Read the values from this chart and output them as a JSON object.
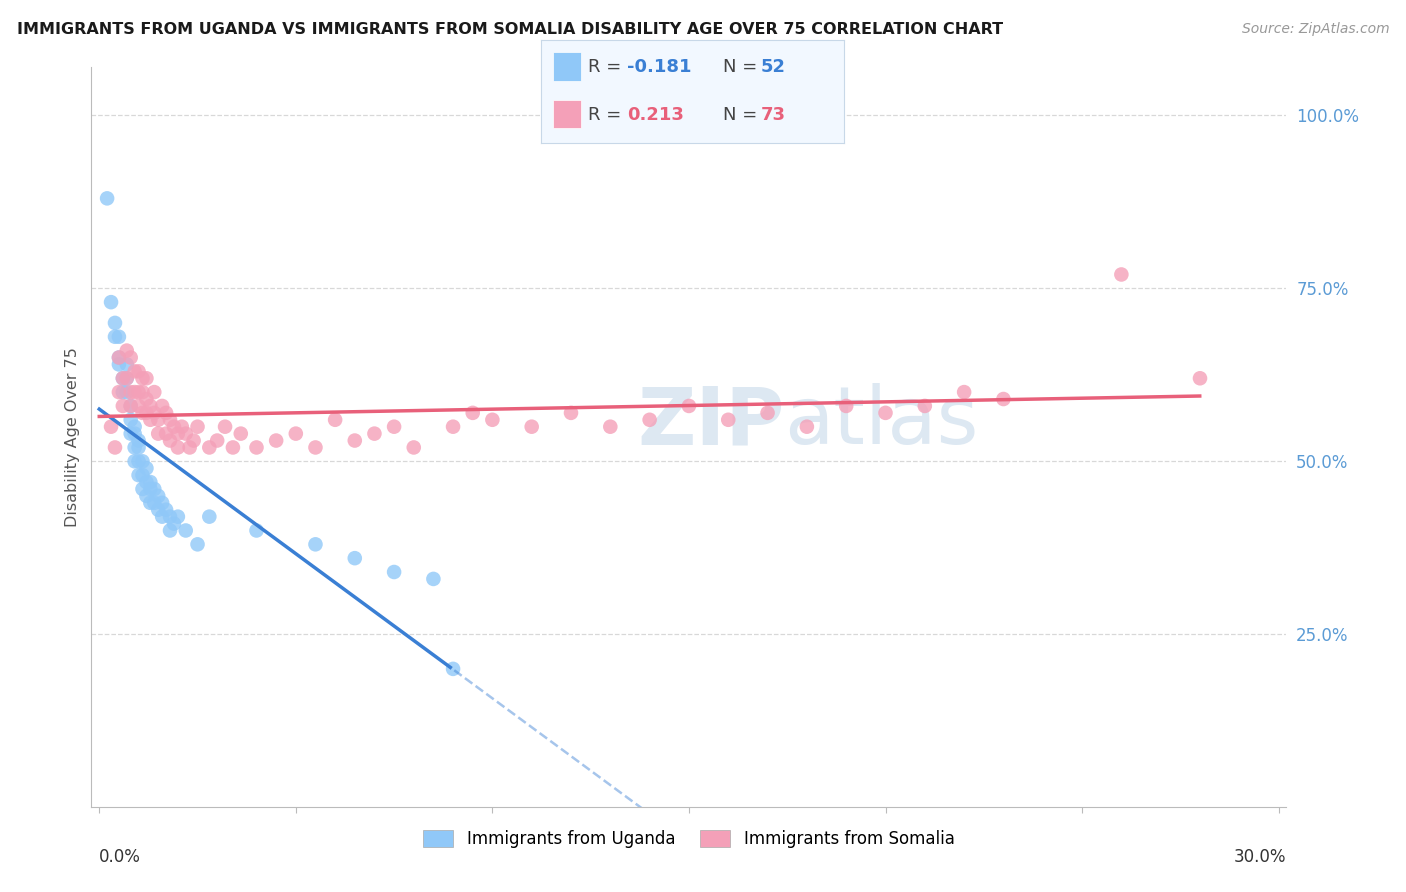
{
  "title": "IMMIGRANTS FROM UGANDA VS IMMIGRANTS FROM SOMALIA DISABILITY AGE OVER 75 CORRELATION CHART",
  "source": "Source: ZipAtlas.com",
  "ylabel": "Disability Age Over 75",
  "xlim": [
    0.0,
    0.3
  ],
  "ylim": [
    0.0,
    1.05
  ],
  "uganda_R": -0.181,
  "uganda_N": 52,
  "somalia_R": 0.213,
  "somalia_N": 73,
  "uganda_color": "#90c8f8",
  "somalia_color": "#f4a0b8",
  "uganda_line_color": "#3a7fd4",
  "somalia_line_color": "#e8607a",
  "watermark": "ZIPatlas",
  "grid_color": "#d8d8d8",
  "right_tick_color": "#5b9bd5",
  "uganda_x": [
    0.002,
    0.003,
    0.004,
    0.004,
    0.005,
    0.005,
    0.005,
    0.006,
    0.006,
    0.007,
    0.007,
    0.007,
    0.008,
    0.008,
    0.008,
    0.009,
    0.009,
    0.009,
    0.009,
    0.01,
    0.01,
    0.01,
    0.01,
    0.011,
    0.011,
    0.011,
    0.012,
    0.012,
    0.012,
    0.013,
    0.013,
    0.013,
    0.014,
    0.014,
    0.015,
    0.015,
    0.016,
    0.016,
    0.017,
    0.018,
    0.018,
    0.019,
    0.02,
    0.022,
    0.025,
    0.028,
    0.04,
    0.055,
    0.065,
    0.075,
    0.085,
    0.09
  ],
  "uganda_y": [
    0.88,
    0.73,
    0.7,
    0.68,
    0.68,
    0.65,
    0.64,
    0.62,
    0.6,
    0.64,
    0.62,
    0.6,
    0.58,
    0.56,
    0.54,
    0.55,
    0.54,
    0.52,
    0.5,
    0.53,
    0.52,
    0.5,
    0.48,
    0.5,
    0.48,
    0.46,
    0.49,
    0.47,
    0.45,
    0.47,
    0.46,
    0.44,
    0.46,
    0.44,
    0.45,
    0.43,
    0.44,
    0.42,
    0.43,
    0.42,
    0.4,
    0.41,
    0.42,
    0.4,
    0.38,
    0.42,
    0.4,
    0.38,
    0.36,
    0.34,
    0.33,
    0.2
  ],
  "somalia_x": [
    0.003,
    0.004,
    0.005,
    0.005,
    0.006,
    0.006,
    0.007,
    0.007,
    0.008,
    0.008,
    0.008,
    0.009,
    0.009,
    0.01,
    0.01,
    0.01,
    0.011,
    0.011,
    0.011,
    0.012,
    0.012,
    0.012,
    0.013,
    0.013,
    0.014,
    0.014,
    0.015,
    0.015,
    0.016,
    0.017,
    0.017,
    0.018,
    0.018,
    0.019,
    0.02,
    0.02,
    0.021,
    0.022,
    0.023,
    0.024,
    0.025,
    0.028,
    0.03,
    0.032,
    0.034,
    0.036,
    0.04,
    0.045,
    0.05,
    0.055,
    0.06,
    0.065,
    0.07,
    0.075,
    0.08,
    0.09,
    0.095,
    0.1,
    0.11,
    0.12,
    0.13,
    0.14,
    0.15,
    0.16,
    0.17,
    0.18,
    0.19,
    0.2,
    0.21,
    0.22,
    0.23,
    0.26,
    0.28
  ],
  "somalia_y": [
    0.55,
    0.52,
    0.65,
    0.6,
    0.62,
    0.58,
    0.66,
    0.62,
    0.6,
    0.58,
    0.65,
    0.63,
    0.6,
    0.63,
    0.6,
    0.58,
    0.62,
    0.6,
    0.57,
    0.62,
    0.59,
    0.57,
    0.58,
    0.56,
    0.6,
    0.57,
    0.56,
    0.54,
    0.58,
    0.57,
    0.54,
    0.56,
    0.53,
    0.55,
    0.54,
    0.52,
    0.55,
    0.54,
    0.52,
    0.53,
    0.55,
    0.52,
    0.53,
    0.55,
    0.52,
    0.54,
    0.52,
    0.53,
    0.54,
    0.52,
    0.56,
    0.53,
    0.54,
    0.55,
    0.52,
    0.55,
    0.57,
    0.56,
    0.55,
    0.57,
    0.55,
    0.56,
    0.58,
    0.56,
    0.57,
    0.55,
    0.58,
    0.57,
    0.58,
    0.6,
    0.59,
    0.77,
    0.62
  ]
}
